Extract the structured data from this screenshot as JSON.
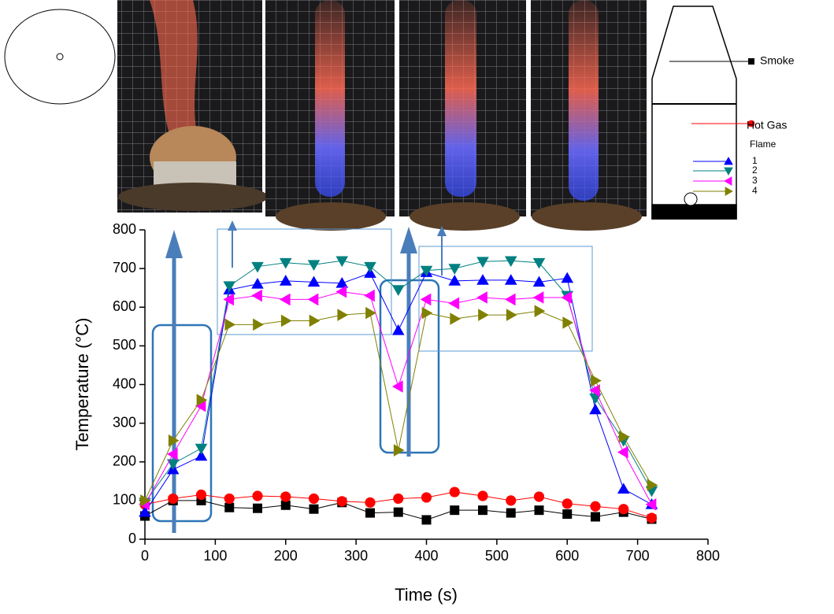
{
  "chart_data": {
    "type": "line",
    "xlabel": "Time (s)",
    "ylabel": "Temperature (°C)",
    "legend_group": "Flame",
    "x": [
      0,
      40,
      80,
      120,
      160,
      200,
      240,
      280,
      320,
      360,
      400,
      440,
      480,
      520,
      560,
      600,
      640,
      680,
      720
    ],
    "series": [
      {
        "name": "Smoke",
        "color": "#000000",
        "marker": "square",
        "values": [
          60,
          100,
          100,
          82,
          80,
          88,
          78,
          95,
          68,
          70,
          50,
          75,
          75,
          68,
          75,
          65,
          58,
          70,
          52
        ]
      },
      {
        "name": "Hot Gas",
        "color": "#ff0000",
        "marker": "circle",
        "values": [
          90,
          105,
          115,
          105,
          112,
          110,
          105,
          98,
          95,
          105,
          108,
          122,
          112,
          100,
          110,
          92,
          85,
          78,
          55
        ]
      },
      {
        "name": "1",
        "color": "#0000ff",
        "marker": "up",
        "values": [
          70,
          180,
          215,
          645,
          660,
          668,
          665,
          662,
          688,
          540,
          690,
          668,
          670,
          670,
          665,
          675,
          335,
          130,
          90
        ]
      },
      {
        "name": "2",
        "color": "#008080",
        "marker": "down",
        "values": [
          95,
          195,
          235,
          655,
          705,
          715,
          710,
          720,
          705,
          645,
          695,
          700,
          718,
          720,
          715,
          630,
          365,
          255,
          125
        ]
      },
      {
        "name": "3",
        "color": "#ff00ff",
        "marker": "left",
        "values": [
          90,
          220,
          345,
          620,
          630,
          620,
          620,
          640,
          630,
          395,
          620,
          610,
          625,
          620,
          625,
          625,
          385,
          225,
          90
        ]
      },
      {
        "name": "4",
        "color": "#808000",
        "marker": "right",
        "values": [
          100,
          255,
          360,
          555,
          555,
          565,
          565,
          580,
          585,
          230,
          585,
          570,
          580,
          580,
          590,
          560,
          410,
          265,
          140
        ]
      }
    ],
    "xlim": [
      0,
      800
    ],
    "xticks": [
      0,
      100,
      200,
      300,
      400,
      500,
      600,
      700,
      800
    ],
    "ylim": [
      0,
      800
    ],
    "yticks": [
      0,
      100,
      200,
      300,
      400,
      500,
      600,
      700,
      800
    ]
  }
}
